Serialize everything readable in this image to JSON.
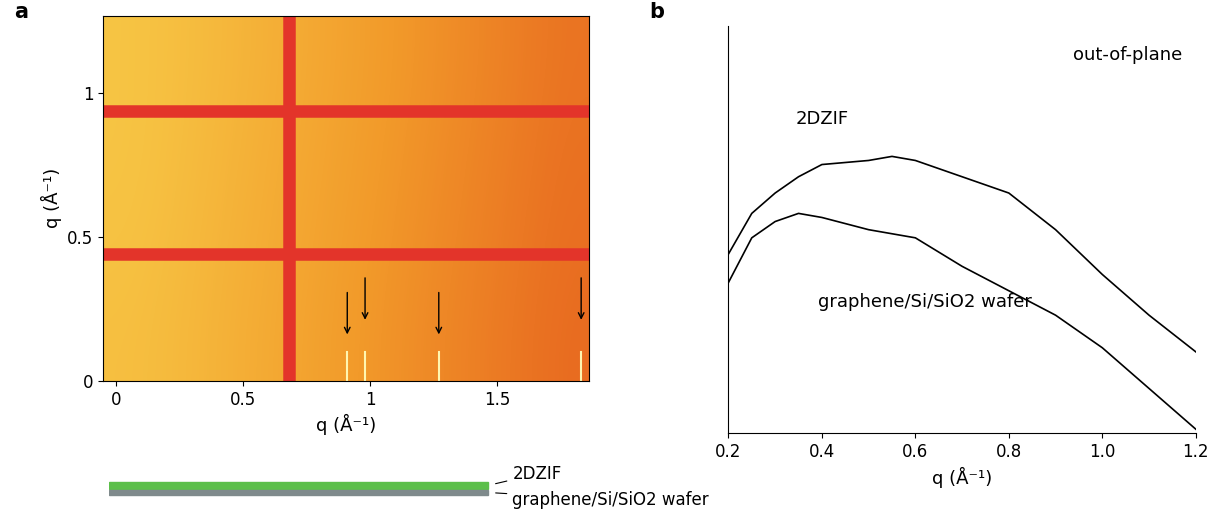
{
  "chart_data": [
    {
      "panel": "a",
      "type": "heatmap",
      "xlabel": "q (Å⁻¹)",
      "ylabel": "q (Å⁻¹)",
      "xlim": [
        -0.05,
        1.86
      ],
      "ylim": [
        0,
        1.27
      ],
      "xticks": [
        0,
        0.5,
        1,
        1.5
      ],
      "yticks": [
        0,
        0.5,
        1
      ],
      "cells": [
        [
          0.15,
          0.2,
          0.28,
          0.36,
          0.44,
          0.52,
          0.6,
          0.68,
          0.76,
          0.84
        ],
        [
          0.12,
          0.18,
          0.26,
          0.34,
          0.42,
          0.5,
          0.58,
          0.66,
          0.74,
          0.82
        ],
        [
          0.1,
          0.16,
          0.24,
          0.32,
          0.4,
          0.48,
          0.56,
          0.64,
          0.72,
          0.8
        ],
        [
          0.1,
          0.15,
          0.22,
          0.3,
          0.38,
          0.46,
          0.54,
          0.62,
          0.7,
          0.78
        ]
      ],
      "cell_range": [
        0,
        1
      ],
      "detector_gaps_x": [
        0.68
      ],
      "detector_gaps_y": [
        0.44,
        0.94
      ],
      "peaks": [
        0.91,
        0.98,
        1.27,
        1.83
      ],
      "schematic_labels": [
        "2DZIF",
        "graphene/Si/SiO2 wafer"
      ]
    },
    {
      "panel": "b",
      "type": "line",
      "title": "out-of-plane",
      "xlabel": "q (Å⁻¹)",
      "x": [
        0.2,
        0.25,
        0.3,
        0.35,
        0.4,
        0.5,
        0.55,
        0.6,
        0.7,
        0.8,
        0.9,
        1.0,
        1.1,
        1.2
      ],
      "series": [
        {
          "name": "2DZIF",
          "color": "#000000",
          "values": [
            0.44,
            0.54,
            0.59,
            0.63,
            0.66,
            0.67,
            0.68,
            0.67,
            0.63,
            0.59,
            0.5,
            0.39,
            0.29,
            0.2
          ]
        },
        {
          "name": "graphene/Si/SiO2 wafer",
          "color": "#000000",
          "values": [
            0.37,
            0.48,
            0.52,
            0.54,
            0.53,
            0.5,
            0.49,
            0.48,
            0.41,
            0.35,
            0.29,
            0.21,
            0.11,
            0.01
          ]
        }
      ],
      "xlim": [
        0.2,
        1.2
      ],
      "ylim": [
        0,
        1
      ],
      "xticks": [
        0.2,
        0.4,
        0.6,
        0.8,
        1.0,
        1.2
      ],
      "tick_labels": "x"
    }
  ]
}
